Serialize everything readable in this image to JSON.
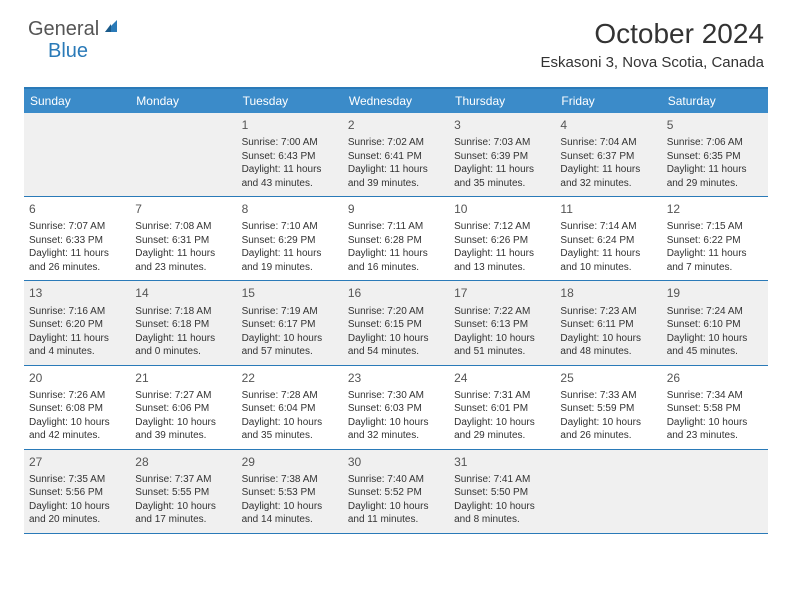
{
  "logo": {
    "text_general": "General",
    "text_blue": "Blue"
  },
  "title": "October 2024",
  "location": "Eskasoni 3, Nova Scotia, Canada",
  "colors": {
    "header_bar": "#3b8bc9",
    "border": "#2a7ab8",
    "shaded_bg": "#f0f0f0",
    "text": "#333333",
    "logo_blue": "#2a7ab8",
    "logo_grey": "#555555"
  },
  "weekdays": [
    "Sunday",
    "Monday",
    "Tuesday",
    "Wednesday",
    "Thursday",
    "Friday",
    "Saturday"
  ],
  "weeks": [
    [
      {
        "num": "",
        "sunrise": "",
        "sunset": "",
        "daylight": ""
      },
      {
        "num": "",
        "sunrise": "",
        "sunset": "",
        "daylight": ""
      },
      {
        "num": "1",
        "sunrise": "Sunrise: 7:00 AM",
        "sunset": "Sunset: 6:43 PM",
        "daylight": "Daylight: 11 hours and 43 minutes."
      },
      {
        "num": "2",
        "sunrise": "Sunrise: 7:02 AM",
        "sunset": "Sunset: 6:41 PM",
        "daylight": "Daylight: 11 hours and 39 minutes."
      },
      {
        "num": "3",
        "sunrise": "Sunrise: 7:03 AM",
        "sunset": "Sunset: 6:39 PM",
        "daylight": "Daylight: 11 hours and 35 minutes."
      },
      {
        "num": "4",
        "sunrise": "Sunrise: 7:04 AM",
        "sunset": "Sunset: 6:37 PM",
        "daylight": "Daylight: 11 hours and 32 minutes."
      },
      {
        "num": "5",
        "sunrise": "Sunrise: 7:06 AM",
        "sunset": "Sunset: 6:35 PM",
        "daylight": "Daylight: 11 hours and 29 minutes."
      }
    ],
    [
      {
        "num": "6",
        "sunrise": "Sunrise: 7:07 AM",
        "sunset": "Sunset: 6:33 PM",
        "daylight": "Daylight: 11 hours and 26 minutes."
      },
      {
        "num": "7",
        "sunrise": "Sunrise: 7:08 AM",
        "sunset": "Sunset: 6:31 PM",
        "daylight": "Daylight: 11 hours and 23 minutes."
      },
      {
        "num": "8",
        "sunrise": "Sunrise: 7:10 AM",
        "sunset": "Sunset: 6:29 PM",
        "daylight": "Daylight: 11 hours and 19 minutes."
      },
      {
        "num": "9",
        "sunrise": "Sunrise: 7:11 AM",
        "sunset": "Sunset: 6:28 PM",
        "daylight": "Daylight: 11 hours and 16 minutes."
      },
      {
        "num": "10",
        "sunrise": "Sunrise: 7:12 AM",
        "sunset": "Sunset: 6:26 PM",
        "daylight": "Daylight: 11 hours and 13 minutes."
      },
      {
        "num": "11",
        "sunrise": "Sunrise: 7:14 AM",
        "sunset": "Sunset: 6:24 PM",
        "daylight": "Daylight: 11 hours and 10 minutes."
      },
      {
        "num": "12",
        "sunrise": "Sunrise: 7:15 AM",
        "sunset": "Sunset: 6:22 PM",
        "daylight": "Daylight: 11 hours and 7 minutes."
      }
    ],
    [
      {
        "num": "13",
        "sunrise": "Sunrise: 7:16 AM",
        "sunset": "Sunset: 6:20 PM",
        "daylight": "Daylight: 11 hours and 4 minutes."
      },
      {
        "num": "14",
        "sunrise": "Sunrise: 7:18 AM",
        "sunset": "Sunset: 6:18 PM",
        "daylight": "Daylight: 11 hours and 0 minutes."
      },
      {
        "num": "15",
        "sunrise": "Sunrise: 7:19 AM",
        "sunset": "Sunset: 6:17 PM",
        "daylight": "Daylight: 10 hours and 57 minutes."
      },
      {
        "num": "16",
        "sunrise": "Sunrise: 7:20 AM",
        "sunset": "Sunset: 6:15 PM",
        "daylight": "Daylight: 10 hours and 54 minutes."
      },
      {
        "num": "17",
        "sunrise": "Sunrise: 7:22 AM",
        "sunset": "Sunset: 6:13 PM",
        "daylight": "Daylight: 10 hours and 51 minutes."
      },
      {
        "num": "18",
        "sunrise": "Sunrise: 7:23 AM",
        "sunset": "Sunset: 6:11 PM",
        "daylight": "Daylight: 10 hours and 48 minutes."
      },
      {
        "num": "19",
        "sunrise": "Sunrise: 7:24 AM",
        "sunset": "Sunset: 6:10 PM",
        "daylight": "Daylight: 10 hours and 45 minutes."
      }
    ],
    [
      {
        "num": "20",
        "sunrise": "Sunrise: 7:26 AM",
        "sunset": "Sunset: 6:08 PM",
        "daylight": "Daylight: 10 hours and 42 minutes."
      },
      {
        "num": "21",
        "sunrise": "Sunrise: 7:27 AM",
        "sunset": "Sunset: 6:06 PM",
        "daylight": "Daylight: 10 hours and 39 minutes."
      },
      {
        "num": "22",
        "sunrise": "Sunrise: 7:28 AM",
        "sunset": "Sunset: 6:04 PM",
        "daylight": "Daylight: 10 hours and 35 minutes."
      },
      {
        "num": "23",
        "sunrise": "Sunrise: 7:30 AM",
        "sunset": "Sunset: 6:03 PM",
        "daylight": "Daylight: 10 hours and 32 minutes."
      },
      {
        "num": "24",
        "sunrise": "Sunrise: 7:31 AM",
        "sunset": "Sunset: 6:01 PM",
        "daylight": "Daylight: 10 hours and 29 minutes."
      },
      {
        "num": "25",
        "sunrise": "Sunrise: 7:33 AM",
        "sunset": "Sunset: 5:59 PM",
        "daylight": "Daylight: 10 hours and 26 minutes."
      },
      {
        "num": "26",
        "sunrise": "Sunrise: 7:34 AM",
        "sunset": "Sunset: 5:58 PM",
        "daylight": "Daylight: 10 hours and 23 minutes."
      }
    ],
    [
      {
        "num": "27",
        "sunrise": "Sunrise: 7:35 AM",
        "sunset": "Sunset: 5:56 PM",
        "daylight": "Daylight: 10 hours and 20 minutes."
      },
      {
        "num": "28",
        "sunrise": "Sunrise: 7:37 AM",
        "sunset": "Sunset: 5:55 PM",
        "daylight": "Daylight: 10 hours and 17 minutes."
      },
      {
        "num": "29",
        "sunrise": "Sunrise: 7:38 AM",
        "sunset": "Sunset: 5:53 PM",
        "daylight": "Daylight: 10 hours and 14 minutes."
      },
      {
        "num": "30",
        "sunrise": "Sunrise: 7:40 AM",
        "sunset": "Sunset: 5:52 PM",
        "daylight": "Daylight: 10 hours and 11 minutes."
      },
      {
        "num": "31",
        "sunrise": "Sunrise: 7:41 AM",
        "sunset": "Sunset: 5:50 PM",
        "daylight": "Daylight: 10 hours and 8 minutes."
      },
      {
        "num": "",
        "sunrise": "",
        "sunset": "",
        "daylight": ""
      },
      {
        "num": "",
        "sunrise": "",
        "sunset": "",
        "daylight": ""
      }
    ]
  ]
}
